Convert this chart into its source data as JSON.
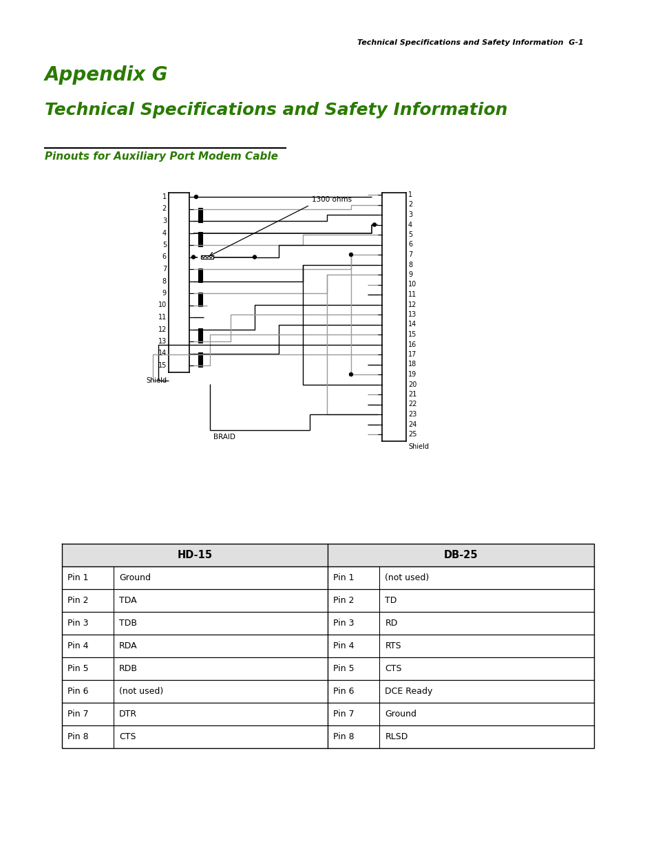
{
  "header_text": "Technical Specifications and Safety Information  G-1",
  "appendix_title": "Appendix G",
  "main_title": "Technical Specifications and Safety Information",
  "section_title": "Pinouts for Auxiliary Port Modem Cable",
  "resistor_label": "1300 ohms",
  "braid_label": "BRAID",
  "hd15_pins": [
    "Pin 1",
    "Pin 2",
    "Pin 3",
    "Pin 4",
    "Pin 5",
    "Pin 6",
    "Pin 7",
    "Pin 8"
  ],
  "hd15_values": [
    "Ground",
    "TDA",
    "TDB",
    "RDA",
    "RDB",
    "(not used)",
    "DTR",
    "CTS"
  ],
  "db25_pins": [
    "Pin 1",
    "Pin 2",
    "Pin 3",
    "Pin 4",
    "Pin 5",
    "Pin 6",
    "Pin 7",
    "Pin 8"
  ],
  "db25_values": [
    "(not used)",
    "TD",
    "RD",
    "RTS",
    "CTS",
    "DCE Ready",
    "Ground",
    "RLSD"
  ],
  "green_color": "#2A7A00",
  "black_color": "#000000",
  "gray_color": "#999999",
  "table_header_bg": "#E0E0E0"
}
